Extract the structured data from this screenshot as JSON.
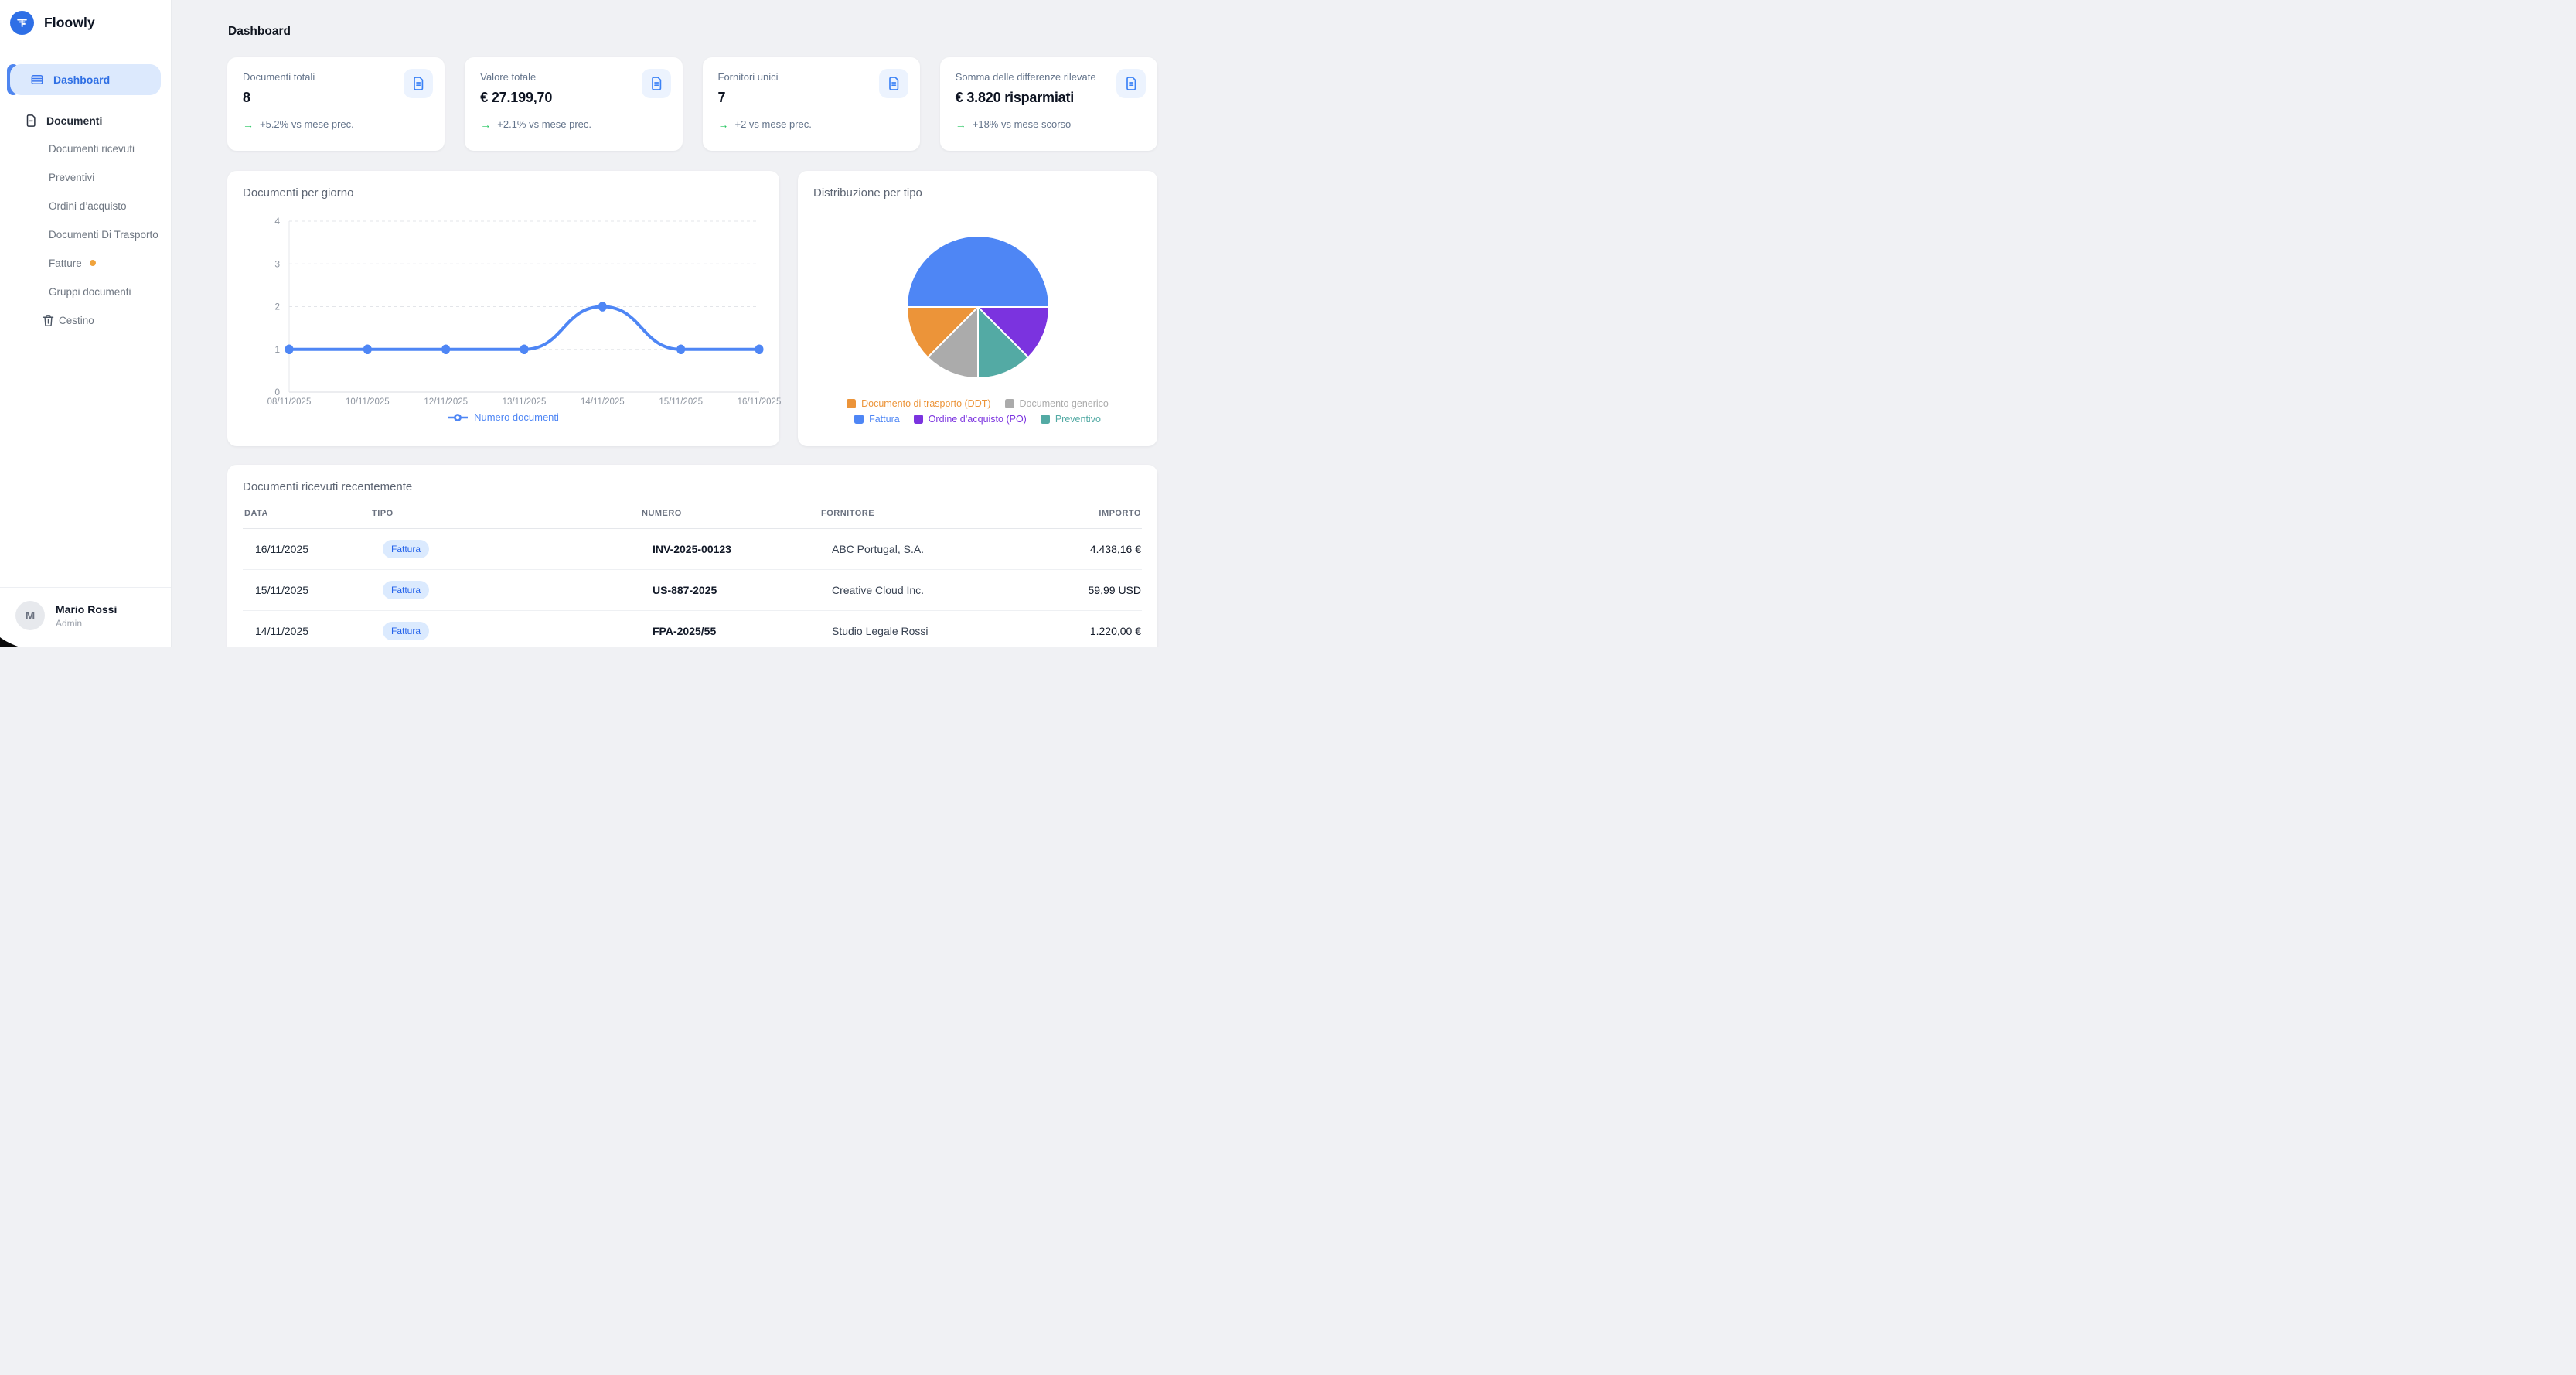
{
  "brand": {
    "name": "Floowly"
  },
  "sidebar": {
    "dashboard_label": "Dashboard",
    "section_label": "Documenti",
    "sub_items": [
      {
        "label": "Documenti ricevuti"
      },
      {
        "label": "Preventivi"
      },
      {
        "label": "Ordini d’acquisto"
      },
      {
        "label": "Documenti Di Trasporto"
      },
      {
        "label": "Fatture",
        "badge_dot": true
      },
      {
        "label": "Gruppi documenti"
      }
    ],
    "trash_label": "Cestino",
    "user": {
      "initial": "M",
      "name": "Mario Rossi",
      "role": "Admin"
    }
  },
  "page_title": "Dashboard",
  "ui": {
    "trend_arrow": "→"
  },
  "stats": [
    {
      "label": "Documenti totali",
      "value": "8",
      "trend": "+5.2% vs mese prec."
    },
    {
      "label": "Valore totale",
      "value": "€ 27.199,70",
      "trend": "+2.1% vs mese prec."
    },
    {
      "label": "Fornitori unici",
      "value": "7",
      "trend": "+2 vs mese prec."
    },
    {
      "label": "Somma delle differenze rilevate",
      "value": "€ 3.820 risparmiati",
      "trend": "+18% vs mese scorso"
    }
  ],
  "chart_data": [
    {
      "type": "line",
      "title": "Documenti per giorno",
      "categories": [
        "08/11/2025",
        "10/11/2025",
        "12/11/2025",
        "13/11/2025",
        "14/11/2025",
        "15/11/2025",
        "16/11/2025"
      ],
      "series": [
        {
          "name": "Numero documenti",
          "values": [
            1,
            1,
            1,
            1,
            2,
            1,
            1
          ],
          "color": "#4e86f5"
        }
      ],
      "xlabel": "",
      "ylabel": "",
      "ylim": [
        0,
        4
      ],
      "yticks": [
        0,
        1,
        2,
        3,
        4
      ],
      "grid": "dashed-horizontal",
      "legend_position": "bottom"
    },
    {
      "type": "pie",
      "title": "Distribuzione per tipo",
      "slices": [
        {
          "label": "Fattura",
          "value": 4,
          "color": "#4e86f5"
        },
        {
          "label": "Ordine d’acquisto (PO)",
          "value": 1,
          "color": "#7b33df"
        },
        {
          "label": "Preventivo",
          "value": 1,
          "color": "#53aaa4"
        },
        {
          "label": "Documento generico",
          "value": 1,
          "color": "#ababab"
        },
        {
          "label": "Documento di trasporto (DDT)",
          "value": 1,
          "color": "#ec9439"
        }
      ],
      "total": 8,
      "start_angle_deg": 180,
      "direction": "clockwise",
      "legend_rows": [
        [
          4,
          3
        ],
        [
          0,
          1,
          2
        ]
      ],
      "legend_position": "bottom"
    }
  ],
  "table": {
    "title": "Documenti ricevuti recentemente",
    "columns": [
      "DATA",
      "TIPO",
      "NUMERO",
      "FORNITORE",
      "IMPORTO"
    ],
    "rows": [
      {
        "data": "16/11/2025",
        "tipo": "Fattura",
        "numero": "INV-2025-00123",
        "fornitore": "ABC Portugal, S.A.",
        "importo": "4.438,16 €"
      },
      {
        "data": "15/11/2025",
        "tipo": "Fattura",
        "numero": "US-887-2025",
        "fornitore": "Creative Cloud Inc.",
        "importo": "59,99 USD"
      },
      {
        "data": "14/11/2025",
        "tipo": "Fattura",
        "numero": "FPA-2025/55",
        "fornitore": "Studio Legale Rossi",
        "importo": "1.220,00 €"
      }
    ]
  },
  "theme": {
    "accent": "#2f6fe4",
    "accent_light": "#dce9fd",
    "logo_blue": "#2e6fe6",
    "green": "#22c55e",
    "amber": "#f0a33c",
    "pill_bg": "#dbeafe",
    "pill_text": "#2563eb",
    "line_blue": "#4e86f5"
  }
}
